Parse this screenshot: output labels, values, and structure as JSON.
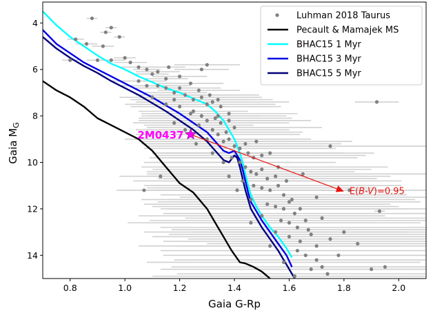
{
  "chart_data": {
    "type": "scatter",
    "xlabel": "Gaia G-Rp",
    "ylabel": "Gaia M",
    "ylabel_subscript": "G",
    "xlim": [
      0.7,
      2.1
    ],
    "ylim": [
      15.0,
      3.1
    ],
    "y_inverted": true,
    "grid": false,
    "legend_position": "top-right",
    "xticks": [
      "0.8",
      "1.0",
      "1.2",
      "1.4",
      "1.6",
      "1.8",
      "2.0"
    ],
    "yticks": [
      "4",
      "6",
      "8",
      "10",
      "12",
      "14"
    ],
    "colors": {
      "points": "#808080",
      "errorbars": "#d0d0d0",
      "ms": "#000000",
      "bhac1": "#00ffff",
      "bhac3": "#0000e6",
      "bhac5": "#00007a",
      "target": "#ff00ff",
      "arrow": "#e8110f"
    },
    "legend": [
      {
        "label": "Luhman 2018 Taurus",
        "style": "point",
        "color": "#808080"
      },
      {
        "label": "Pecault & Mamajek MS",
        "style": "line",
        "color": "#000000"
      },
      {
        "label": "BHAC15 1 Myr",
        "style": "line",
        "color": "#00ffff"
      },
      {
        "label": "BHAC15 3 Myr",
        "style": "line",
        "color": "#0000e6"
      },
      {
        "label": "BHAC15 5 Myr",
        "style": "line",
        "color": "#00007a"
      }
    ],
    "series": [
      {
        "name": "Pecault & Mamajek MS",
        "color": "#000000",
        "x": [
          0.7,
          0.75,
          0.8,
          0.85,
          0.9,
          0.95,
          1.0,
          1.05,
          1.1,
          1.15,
          1.2,
          1.25,
          1.3,
          1.33,
          1.36,
          1.39,
          1.42,
          1.44,
          1.47,
          1.5,
          1.53,
          1.54
        ],
        "y": [
          6.5,
          6.9,
          7.2,
          7.6,
          8.1,
          8.4,
          8.7,
          9.0,
          9.5,
          10.2,
          10.9,
          11.3,
          12.0,
          12.6,
          13.2,
          13.8,
          14.3,
          14.35,
          14.5,
          14.7,
          15.0,
          15.1
        ]
      },
      {
        "name": "BHAC15 1 Myr",
        "color": "#00ffff",
        "x": [
          0.7,
          0.75,
          0.8,
          0.85,
          0.9,
          0.95,
          1.0,
          1.05,
          1.1,
          1.15,
          1.2,
          1.25,
          1.3,
          1.33,
          1.36,
          1.38,
          1.4,
          1.41,
          1.42,
          1.43,
          1.44,
          1.45,
          1.46,
          1.48,
          1.5,
          1.53,
          1.56,
          1.59,
          1.61
        ],
        "y": [
          3.5,
          4.1,
          4.6,
          5.0,
          5.4,
          5.75,
          6.0,
          6.3,
          6.55,
          6.8,
          7.0,
          7.25,
          7.5,
          7.8,
          8.2,
          8.6,
          9.0,
          9.3,
          9.6,
          10.0,
          10.5,
          11.0,
          11.4,
          11.9,
          12.3,
          12.8,
          13.2,
          13.7,
          14.1
        ]
      },
      {
        "name": "BHAC15 3 Myr",
        "color": "#0000e6",
        "x": [
          0.7,
          0.75,
          0.8,
          0.85,
          0.9,
          0.95,
          1.0,
          1.05,
          1.1,
          1.15,
          1.2,
          1.25,
          1.3,
          1.33,
          1.36,
          1.38,
          1.4,
          1.41,
          1.42,
          1.43,
          1.44,
          1.45,
          1.46,
          1.48,
          1.5,
          1.53,
          1.56,
          1.59,
          1.61
        ],
        "y": [
          4.3,
          4.9,
          5.3,
          5.7,
          6.0,
          6.3,
          6.6,
          6.9,
          7.2,
          7.55,
          7.9,
          8.3,
          8.7,
          9.1,
          9.5,
          9.6,
          9.5,
          9.7,
          9.9,
          10.3,
          10.8,
          11.3,
          11.7,
          12.1,
          12.5,
          13.0,
          13.5,
          14.0,
          14.5
        ]
      },
      {
        "name": "BHAC15 5 Myr",
        "color": "#00007a",
        "x": [
          0.7,
          0.75,
          0.8,
          0.85,
          0.9,
          0.95,
          1.0,
          1.05,
          1.1,
          1.15,
          1.2,
          1.25,
          1.3,
          1.33,
          1.36,
          1.38,
          1.4,
          1.41,
          1.42,
          1.43,
          1.44,
          1.45,
          1.46,
          1.48,
          1.5,
          1.53,
          1.56,
          1.59,
          1.62
        ],
        "y": [
          4.6,
          5.1,
          5.5,
          5.85,
          6.15,
          6.5,
          6.8,
          7.1,
          7.45,
          7.8,
          8.2,
          8.6,
          9.1,
          9.5,
          9.9,
          10.0,
          9.7,
          9.8,
          10.2,
          10.7,
          11.2,
          11.6,
          12.0,
          12.4,
          12.8,
          13.3,
          13.8,
          14.4,
          15.0
        ]
      }
    ],
    "scatter": {
      "name": "Luhman 2018 Taurus",
      "points": [
        [
          0.88,
          3.8,
          0.02
        ],
        [
          0.93,
          4.4,
          0.02
        ],
        [
          0.95,
          4.2,
          0.02
        ],
        [
          0.82,
          4.7,
          0.03
        ],
        [
          0.86,
          4.9,
          0.04
        ],
        [
          0.92,
          5.0,
          0.04
        ],
        [
          0.98,
          4.6,
          0.02
        ],
        [
          0.9,
          5.6,
          0.04
        ],
        [
          0.8,
          5.6,
          0.03
        ],
        [
          0.95,
          5.6,
          0.05
        ],
        [
          1.0,
          5.5,
          0.04
        ],
        [
          1.02,
          5.7,
          0.06
        ],
        [
          1.05,
          5.9,
          0.07
        ],
        [
          1.08,
          6.0,
          0.05
        ],
        [
          1.1,
          6.2,
          0.06
        ],
        [
          1.12,
          6.1,
          0.08
        ],
        [
          1.15,
          6.4,
          0.08
        ],
        [
          1.05,
          6.5,
          0.1
        ],
        [
          1.08,
          6.7,
          0.1
        ],
        [
          1.12,
          6.7,
          0.12
        ],
        [
          1.15,
          6.8,
          0.12
        ],
        [
          1.2,
          6.8,
          0.15
        ],
        [
          1.18,
          7.0,
          0.12
        ],
        [
          1.22,
          7.1,
          0.18
        ],
        [
          1.1,
          7.2,
          0.12
        ],
        [
          1.25,
          7.3,
          0.2
        ],
        [
          1.28,
          7.2,
          0.22
        ],
        [
          1.3,
          7.5,
          0.25
        ],
        [
          1.32,
          7.4,
          0.28
        ],
        [
          1.35,
          7.6,
          0.22
        ],
        [
          1.2,
          7.6,
          0.18
        ],
        [
          1.25,
          7.8,
          0.2
        ],
        [
          1.28,
          8.0,
          0.22
        ],
        [
          1.3,
          8.2,
          0.25
        ],
        [
          1.33,
          8.1,
          0.28
        ],
        [
          1.35,
          8.3,
          0.25
        ],
        [
          1.38,
          8.2,
          0.3
        ],
        [
          1.4,
          8.5,
          0.32
        ],
        [
          1.32,
          8.6,
          0.28
        ],
        [
          1.34,
          8.8,
          0.3
        ],
        [
          1.3,
          9.0,
          0.3
        ],
        [
          1.36,
          9.1,
          0.3
        ],
        [
          1.38,
          9.0,
          0.3
        ],
        [
          1.4,
          9.3,
          0.32
        ],
        [
          1.42,
          9.4,
          0.35
        ],
        [
          1.44,
          9.2,
          0.35
        ],
        [
          1.45,
          9.6,
          0.35
        ],
        [
          1.47,
          9.8,
          0.38
        ],
        [
          1.5,
          9.7,
          0.38
        ],
        [
          1.42,
          10.0,
          0.35
        ],
        [
          1.44,
          10.2,
          0.38
        ],
        [
          1.46,
          10.4,
          0.38
        ],
        [
          1.48,
          10.5,
          0.4
        ],
        [
          1.5,
          10.3,
          0.4
        ],
        [
          1.52,
          10.7,
          0.4
        ],
        [
          1.55,
          10.6,
          0.42
        ],
        [
          1.43,
          10.8,
          0.4
        ],
        [
          1.47,
          11.0,
          0.4
        ],
        [
          1.5,
          11.1,
          0.42
        ],
        [
          1.53,
          11.2,
          0.42
        ],
        [
          1.56,
          11.0,
          0.45
        ],
        [
          1.58,
          11.4,
          0.45
        ],
        [
          1.46,
          11.6,
          0.4
        ],
        [
          1.52,
          11.8,
          0.45
        ],
        [
          1.55,
          11.9,
          0.45
        ],
        [
          1.58,
          12.0,
          0.45
        ],
        [
          1.6,
          11.7,
          0.48
        ],
        [
          1.62,
          12.2,
          0.48
        ],
        [
          1.5,
          12.3,
          0.45
        ],
        [
          1.57,
          12.5,
          0.48
        ],
        [
          1.6,
          12.6,
          0.48
        ],
        [
          1.63,
          12.8,
          0.5
        ],
        [
          1.66,
          12.5,
          0.5
        ],
        [
          1.55,
          13.0,
          0.48
        ],
        [
          1.6,
          13.2,
          0.5
        ],
        [
          1.64,
          13.4,
          0.5
        ],
        [
          1.68,
          13.1,
          0.52
        ],
        [
          1.7,
          13.6,
          0.52
        ],
        [
          1.63,
          13.8,
          0.5
        ],
        [
          1.66,
          14.0,
          0.52
        ],
        [
          1.7,
          14.2,
          0.52
        ],
        [
          1.72,
          14.5,
          0.55
        ],
        [
          1.68,
          14.6,
          0.55
        ],
        [
          1.74,
          14.8,
          0.55
        ],
        [
          1.8,
          13.0,
          0.55
        ],
        [
          1.85,
          13.5,
          0.55
        ],
        [
          1.93,
          12.1,
          0.02
        ],
        [
          1.92,
          7.4,
          0.08
        ],
        [
          1.9,
          14.6,
          0.45
        ],
        [
          1.95,
          14.5,
          0.35
        ],
        [
          1.82,
          11.2,
          0.5
        ],
        [
          1.75,
          9.3,
          0.45
        ],
        [
          1.65,
          10.5,
          0.45
        ],
        [
          1.7,
          11.5,
          0.5
        ],
        [
          1.07,
          11.2,
          0.1
        ],
        [
          1.13,
          10.6,
          0.15
        ],
        [
          1.28,
          6.0,
          0.1
        ],
        [
          1.3,
          5.8,
          0.12
        ],
        [
          1.18,
          8.3,
          0.15
        ],
        [
          1.22,
          8.6,
          0.18
        ],
        [
          1.26,
          9.2,
          0.2
        ],
        [
          1.32,
          9.6,
          0.22
        ],
        [
          1.36,
          10.0,
          0.25
        ],
        [
          1.38,
          10.6,
          0.3
        ],
        [
          1.41,
          11.2,
          0.35
        ],
        [
          1.15,
          7.5,
          0.15
        ],
        [
          1.18,
          7.3,
          0.16
        ],
        [
          1.24,
          7.9,
          0.18
        ],
        [
          1.27,
          8.4,
          0.2
        ],
        [
          1.34,
          8.0,
          0.25
        ],
        [
          1.37,
          8.7,
          0.28
        ],
        [
          1.39,
          9.8,
          0.3
        ],
        [
          1.46,
          12.6,
          0.45
        ],
        [
          1.53,
          13.6,
          0.48
        ],
        [
          1.58,
          14.3,
          0.5
        ],
        [
          1.62,
          14.9,
          0.52
        ],
        [
          1.48,
          9.1,
          0.35
        ],
        [
          1.53,
          9.6,
          0.38
        ],
        [
          1.56,
          10.2,
          0.4
        ],
        [
          1.59,
          10.8,
          0.42
        ],
        [
          1.61,
          11.6,
          0.45
        ],
        [
          1.64,
          12.0,
          0.48
        ],
        [
          1.67,
          12.9,
          0.5
        ],
        [
          1.72,
          12.4,
          0.5
        ],
        [
          1.75,
          13.3,
          0.52
        ],
        [
          1.78,
          14.0,
          0.52
        ],
        [
          1.16,
          5.9,
          0.06
        ],
        [
          1.2,
          6.3,
          0.1
        ],
        [
          1.24,
          6.6,
          0.12
        ],
        [
          1.27,
          6.9,
          0.15
        ],
        [
          1.31,
          7.1,
          0.18
        ],
        [
          1.34,
          7.3,
          0.2
        ],
        [
          1.38,
          7.9,
          0.25
        ]
      ]
    },
    "target": {
      "label": "2M0437",
      "x": 1.24,
      "y": 8.8
    },
    "arrow": {
      "from": [
        1.24,
        8.8
      ],
      "to": [
        1.8,
        11.25
      ],
      "label_prefix": "E(",
      "label_italic": "B-V",
      "label_suffix": ")=0.95"
    }
  }
}
